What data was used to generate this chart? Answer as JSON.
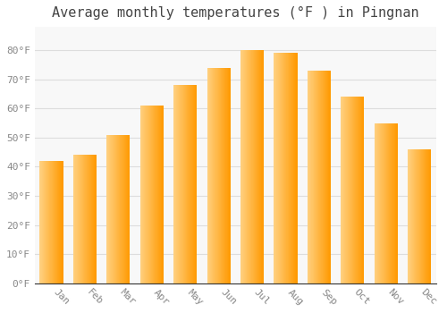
{
  "title": "Average monthly temperatures (°F ) in Pingnan",
  "months": [
    "Jan",
    "Feb",
    "Mar",
    "Apr",
    "May",
    "Jun",
    "Jul",
    "Aug",
    "Sep",
    "Oct",
    "Nov",
    "Dec"
  ],
  "values": [
    42,
    44,
    51,
    61,
    68,
    74,
    80,
    79,
    73,
    64,
    55,
    46
  ],
  "bar_color_main": "#FFA500",
  "bar_color_light": "#FFD080",
  "ylim": [
    0,
    88
  ],
  "yticks": [
    0,
    10,
    20,
    30,
    40,
    50,
    60,
    70,
    80
  ],
  "background_color": "#FFFFFF",
  "plot_bg_color": "#F8F8F8",
  "grid_color": "#DDDDDD",
  "title_fontsize": 11,
  "tick_fontsize": 8,
  "font_family": "monospace"
}
